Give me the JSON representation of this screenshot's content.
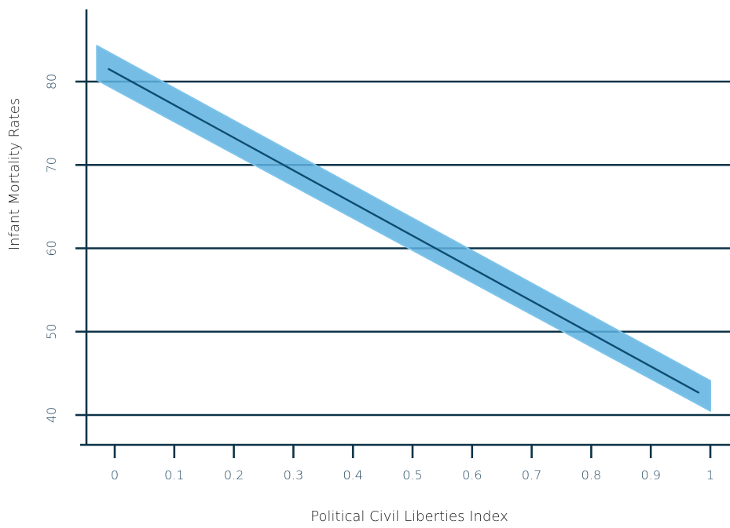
{
  "colors": {
    "axis": "#0c3347",
    "gridline": "#0c3347",
    "line": "#0d4d70",
    "band_fill": "#5eb1e0",
    "band_edge": "#7cc3ea",
    "tick_label": "#2b4f66"
  },
  "chart_data": {
    "type": "line",
    "title": "",
    "xlabel": "Political Civil Liberties Index",
    "ylabel": "Infant Mortality Rates",
    "xlim": [
      -0.05,
      1.02
    ],
    "ylim": [
      36.5,
      89.5
    ],
    "grid": "horizontal",
    "legend": "none",
    "x_ticks": [
      0,
      0.1,
      0.2,
      0.3,
      0.4,
      0.5,
      0.6,
      0.7,
      0.8,
      0.9,
      1
    ],
    "x_tick_labels": [
      "0",
      "0.1",
      "0.2",
      "0.3",
      "0.4",
      "0.5",
      "0.6",
      "0.7",
      "0.8",
      "0.9",
      "1"
    ],
    "y_ticks": [
      40,
      50,
      60,
      70,
      80
    ],
    "y_tick_labels": [
      "40",
      "50",
      "60",
      "70",
      "80"
    ],
    "series": [
      {
        "x": [
          -0.01,
          0.98
        ],
        "y": [
          81.5,
          42.7
        ],
        "band_x": [
          -0.03,
          1.0
        ],
        "band_upper": [
          84.3,
          44.1
        ],
        "band_lower": [
          80.2,
          40.5
        ]
      }
    ]
  }
}
